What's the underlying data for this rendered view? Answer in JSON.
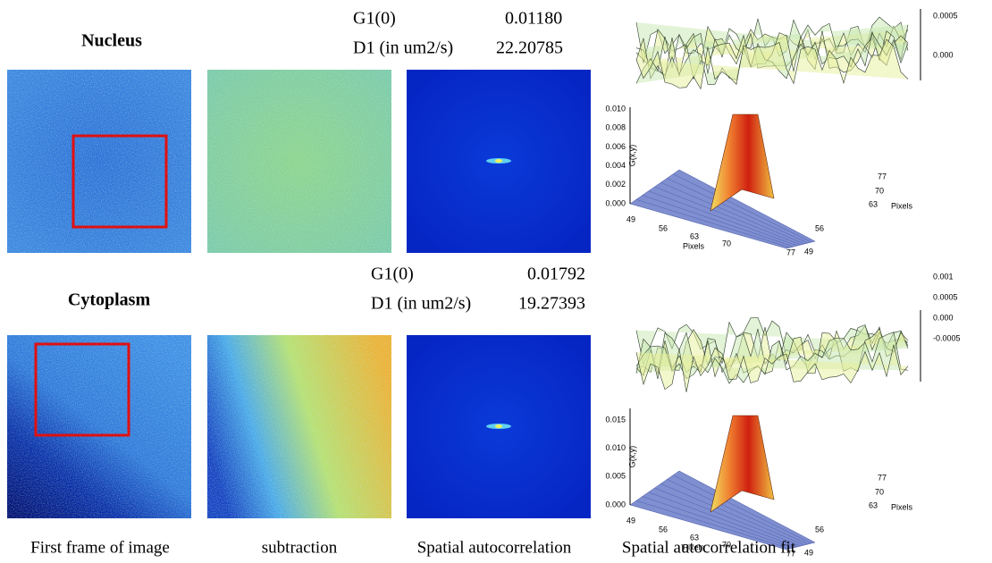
{
  "panels": [
    {
      "label": "Nucleus",
      "stats": [
        {
          "name": "G1(0)",
          "value": "0.01180"
        },
        {
          "name": "D1 (in um2/s)",
          "value": "22.20785"
        }
      ],
      "fit": {
        "residual_ticks": [
          "0.0005",
          "0.000"
        ],
        "z_ticks": [
          "0.000",
          "0.002",
          "0.004",
          "0.006",
          "0.008",
          "0.010"
        ],
        "z_label": "G(x,y)",
        "x_ticks": [
          "49",
          "56",
          "63",
          "70",
          "77"
        ],
        "x_label": "Pixels",
        "y_ticks": [
          "49",
          "56",
          "63",
          "70",
          "77"
        ],
        "y_label": "Pixels"
      }
    },
    {
      "label": "Cytoplasm",
      "stats": [
        {
          "name": "G1(0)",
          "value": "0.01792"
        },
        {
          "name": "D1 (in um2/s)",
          "value": "19.27393"
        }
      ],
      "fit": {
        "residual_ticks": [
          "0.001",
          "0.0005",
          "0.000",
          "-0.0005"
        ],
        "z_ticks": [
          "0.000",
          "0.005",
          "0.010",
          "0.015"
        ],
        "z_label": "G(x,y)",
        "x_ticks": [
          "49",
          "56",
          "63",
          "70",
          "77"
        ],
        "x_label": "Pixels",
        "y_ticks": [
          "49",
          "56",
          "63",
          "70",
          "77"
        ],
        "y_label": "Pixels"
      }
    }
  ],
  "captions": [
    "First frame of image",
    "subtraction",
    "Spatial autocorrelation",
    "Spatial autocorrelation fit"
  ]
}
